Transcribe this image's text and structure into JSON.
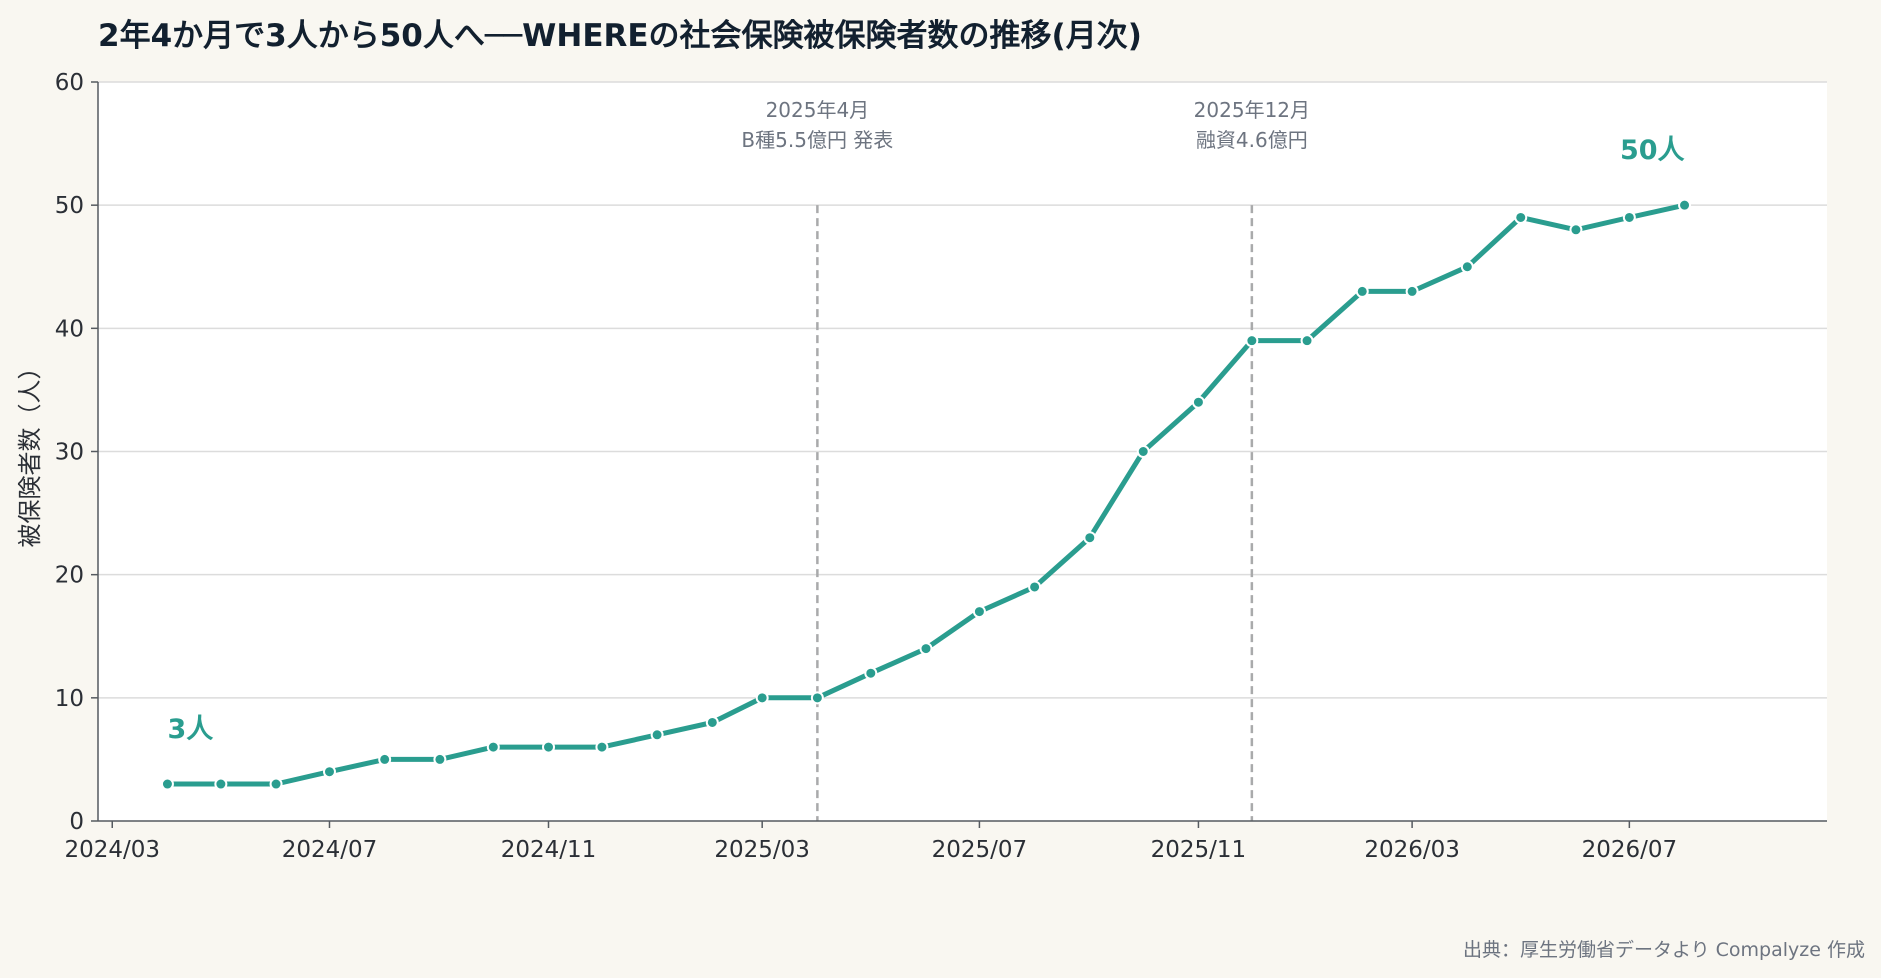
{
  "title": "2年4か月で3人から50人へ──WHEREの社会保険被保険者数の推移(月次)",
  "source": "出典：厚生労働省データより Compalyze 作成",
  "colors": {
    "series": "#2a9d8f",
    "event_line": "#a9aaab",
    "grid": "#dcdcdc",
    "axis": "#555a60",
    "plot_bg": "#ffffff",
    "page_bg": "#f9f7f1"
  },
  "chart_data": {
    "type": "line",
    "title": "2年4か月で3人から50人へ──WHEREの社会保険被保険者数の推移(月次)",
    "ylabel": "被保険者数（人）",
    "xlabel": "",
    "ylim": [
      0,
      60
    ],
    "yticks": [
      0,
      10,
      20,
      30,
      40,
      50,
      60
    ],
    "xlim": [
      "2024-02-22",
      "2026-10-20"
    ],
    "xticks": [
      {
        "date": "2024-03-01",
        "label": "2024/03"
      },
      {
        "date": "2024-07-01",
        "label": "2024/07"
      },
      {
        "date": "2024-11-01",
        "label": "2024/11"
      },
      {
        "date": "2025-03-01",
        "label": "2025/03"
      },
      {
        "date": "2025-07-01",
        "label": "2025/07"
      },
      {
        "date": "2025-11-01",
        "label": "2025/11"
      },
      {
        "date": "2026-03-01",
        "label": "2026/03"
      },
      {
        "date": "2026-07-01",
        "label": "2026/07"
      }
    ],
    "grid": "horizontal",
    "series": [
      {
        "x": [
          "2024-04-01",
          "2024-05-01",
          "2024-06-01",
          "2024-07-01",
          "2024-08-01",
          "2024-09-01",
          "2024-10-01",
          "2024-11-01",
          "2024-12-01",
          "2025-01-01",
          "2025-02-01",
          "2025-03-01",
          "2025-04-01",
          "2025-05-01",
          "2025-06-01",
          "2025-07-01",
          "2025-08-01",
          "2025-09-01",
          "2025-10-01",
          "2025-11-01",
          "2025-12-01",
          "2026-01-01",
          "2026-02-01",
          "2026-03-01",
          "2026-04-01",
          "2026-05-01",
          "2026-06-01",
          "2026-07-01",
          "2026-08-01"
        ],
        "values": [
          3,
          3,
          3,
          4,
          5,
          5,
          6,
          6,
          6,
          7,
          8,
          10,
          10,
          12,
          14,
          17,
          19,
          23,
          30,
          34,
          39,
          39,
          43,
          43,
          45,
          49,
          48,
          49,
          50
        ]
      }
    ],
    "events": [
      {
        "date": "2025-04-01",
        "line1": "2025年4月",
        "line2": "B種5.5億円 発表"
      },
      {
        "date": "2025-12-01",
        "line1": "2025年12月",
        "line2": "融資4.6億円"
      }
    ],
    "annotations": [
      {
        "date": "2024-04-01",
        "value": 3,
        "text": "3人"
      },
      {
        "date": "2026-08-01",
        "value": 50,
        "text": "50人"
      }
    ]
  }
}
